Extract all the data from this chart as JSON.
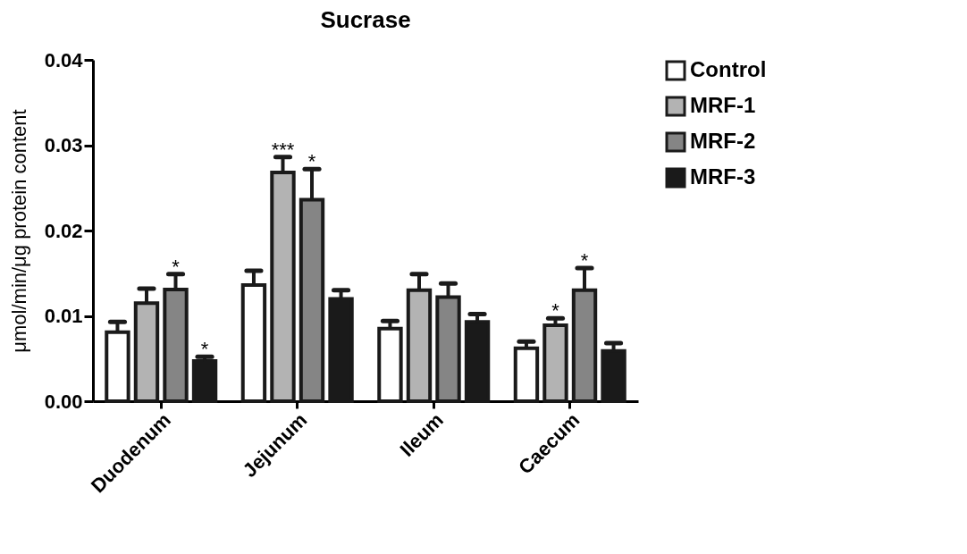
{
  "chart_data": {
    "type": "bar",
    "title": "Sucrase",
    "ylabel": "μmol/min/μg protein content",
    "categories": [
      "Duodenum",
      "Jejunum",
      "Ileum",
      "Caecum"
    ],
    "series": [
      {
        "name": "Control",
        "color": "#ffffff",
        "values": [
          0.0081,
          0.0136,
          0.0085,
          0.0062
        ],
        "errors": [
          [
            0.0081,
            0.0093
          ],
          [
            0.0136,
            0.0153
          ],
          [
            0.0085,
            0.0094
          ],
          [
            0.0062,
            0.007
          ]
        ]
      },
      {
        "name": "MRF-1",
        "color": "#b3b3b3",
        "values": [
          0.0115,
          0.0268,
          0.013,
          0.0089
        ],
        "errors": [
          [
            0.0115,
            0.0132
          ],
          [
            0.0268,
            0.0286
          ],
          [
            0.013,
            0.0149
          ],
          [
            0.0089,
            0.0097
          ]
        ]
      },
      {
        "name": "MRF-2",
        "color": "#858585",
        "values": [
          0.0131,
          0.0236,
          0.0122,
          0.013
        ],
        "errors": [
          [
            0.0131,
            0.0149
          ],
          [
            0.0236,
            0.0272
          ],
          [
            0.0122,
            0.0138
          ],
          [
            0.013,
            0.0156
          ]
        ]
      },
      {
        "name": "MRF-3",
        "color": "#1a1a1a",
        "values": [
          0.0047,
          0.012,
          0.0093,
          0.0059
        ],
        "errors": [
          [
            0.0047,
            0.0052
          ],
          [
            0.012,
            0.013
          ],
          [
            0.0093,
            0.0102
          ],
          [
            0.0059,
            0.0068
          ]
        ]
      }
    ],
    "ylim": [
      0,
      0.04
    ],
    "yticks": [
      {
        "value": 0,
        "label": "0.00"
      },
      {
        "value": 0.01,
        "label": "0.01"
      },
      {
        "value": 0.02,
        "label": "0.02"
      },
      {
        "value": 0.03,
        "label": "0.03"
      },
      {
        "value": 0.04,
        "label": "0.04"
      }
    ],
    "annotations": [
      {
        "text": "*",
        "x": "Duodenum",
        "y": 0.0131
      },
      {
        "text": "*",
        "x": "Duodenum",
        "y": 0.0047
      },
      {
        "text": "***",
        "x": "Jejunum",
        "y": 0.0268
      },
      {
        "text": "*",
        "x": "Jejunum",
        "y": 0.0236
      },
      {
        "text": "*",
        "x": "Caecum",
        "y": 0.0089
      },
      {
        "text": "*",
        "x": "Caecum",
        "y": 0.013
      }
    ],
    "grid": false,
    "legend": "right"
  }
}
